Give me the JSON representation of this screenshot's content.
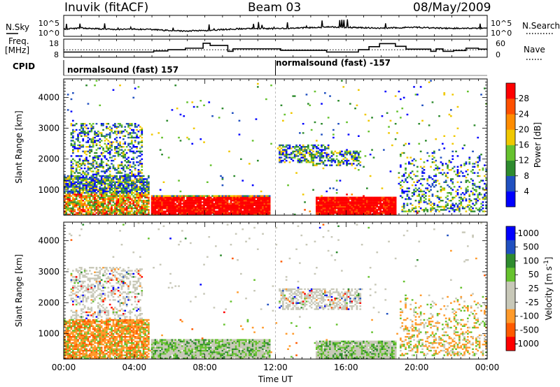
{
  "header": {
    "station": "Inuvik (fitACF)",
    "beam": "Beam 03",
    "date": "08/May/2009"
  },
  "left_labels": {
    "nsky": "N.Sky",
    "freq_line1": "Freq.",
    "freq_line2": "[MHz]",
    "cpid": "CPID"
  },
  "right_labels": {
    "nsearch": "N.Search",
    "nave": "Nave"
  },
  "cpid_segments": [
    {
      "label": "normalsound (fast) 157",
      "start_hour": 0
    },
    {
      "label": "normalsound (fast) -157",
      "start_hour": 12
    }
  ],
  "colors": {
    "power": [
      "#0000ff",
      "#2050c0",
      "#2e8b2e",
      "#66c22e",
      "#f0c800",
      "#ff8c00",
      "#ff5000",
      "#ff0000"
    ],
    "velocity": [
      "#ff0000",
      "#ff5a00",
      "#ff9a2a",
      "#c8c8b8",
      "#c8c8b8",
      "#66c22e",
      "#2e8b2e",
      "#2050c0",
      "#0000ff"
    ]
  },
  "chart_data": [
    {
      "type": "line",
      "panel": "noise",
      "x_unit": "hours UT",
      "left_axis": {
        "label": "N.Sky",
        "ticks": [
          "10^5",
          "10^0"
        ]
      },
      "right_axis": {
        "label": "N.Search",
        "ticks": [
          "10^5",
          "10^0"
        ]
      },
      "series": [
        {
          "name": "N.Sky",
          "x": [
            0,
            1,
            2,
            3,
            4,
            5,
            6,
            7,
            8,
            9,
            10,
            11,
            12,
            13,
            14,
            15,
            16,
            17,
            18,
            19,
            20,
            21,
            22,
            23,
            24
          ],
          "y": [
            1.6,
            1.9,
            1.7,
            1.5,
            1.6,
            1.5,
            1.2,
            1.1,
            1.2,
            1.5,
            1.7,
            1.8,
            1.7,
            1.9,
            2.0,
            2.2,
            2.1,
            2.0,
            1.9,
            2.0,
            2.1,
            1.9,
            1.8,
            1.9,
            1.8
          ]
        }
      ]
    },
    {
      "type": "line",
      "panel": "frequency",
      "x_unit": "hours UT",
      "left_axis": {
        "label": "Freq. [MHz]",
        "ticks": [
          8,
          18
        ],
        "range": [
          8,
          18
        ]
      },
      "right_axis": {
        "label": "Nave",
        "ticks": [
          0,
          60
        ],
        "range": [
          0,
          60
        ]
      },
      "series": [
        {
          "name": "Freq.",
          "x": [
            0,
            3.9,
            5.1,
            5.9,
            6.9,
            7.9,
            8.3,
            9.3,
            9.6,
            12.3,
            14.9,
            16.7,
            17.3,
            17.9,
            18.8,
            19.4,
            20.8,
            21.1,
            21.5,
            22.1,
            22.8,
            23.5,
            24
          ],
          "y": [
            10.5,
            10.5,
            11.2,
            12,
            13,
            16.2,
            14.8,
            11,
            12.6,
            11.6,
            10.5,
            12,
            14,
            16,
            14.2,
            12.4,
            11,
            12.5,
            11,
            11.5,
            13,
            12.4,
            12.4
          ]
        },
        {
          "name": "Nave",
          "x": [
            0,
            24
          ],
          "y": [
            24,
            24
          ]
        }
      ]
    },
    {
      "type": "heatmap",
      "panel": "power",
      "title": "",
      "xlabel": "",
      "ylabel": "Slant Range [km]",
      "x_range_hours": [
        0,
        24
      ],
      "x_ticks": [
        "00:00",
        "04:00",
        "08:00",
        "12:00",
        "16:00",
        "20:00",
        "00:00"
      ],
      "y_range_km": [
        180,
        4600
      ],
      "y_ticks": [
        1000,
        2000,
        3000,
        4000
      ],
      "colorbar": {
        "label": "Power [dB]",
        "ticks": [
          4,
          8,
          12,
          16,
          20,
          24,
          28
        ],
        "range": [
          0,
          32
        ]
      },
      "features": [
        {
          "x_start": 0.0,
          "x_end": 4.8,
          "range_min": 200,
          "range_max": 1500,
          "level": "mixed, mostly 8-28 dB"
        },
        {
          "x_start": 0.3,
          "x_end": 4.4,
          "range_min": 1500,
          "range_max": 3200,
          "level": "patchy 4-20 dB"
        },
        {
          "x_start": 4.9,
          "x_end": 11.7,
          "range_min": 200,
          "range_max": 850,
          "level": "strong, ~28 dB"
        },
        {
          "x_start": 14.2,
          "x_end": 18.8,
          "range_min": 200,
          "range_max": 800,
          "level": "strong, ~28 dB"
        },
        {
          "x_start": 12.1,
          "x_end": 15.0,
          "range_min": 1900,
          "range_max": 2500,
          "level": "12-20 dB"
        },
        {
          "x_start": 14.0,
          "x_end": 16.8,
          "range_min": 1800,
          "range_max": 2300,
          "level": "12-20 dB"
        },
        {
          "x_start": 19.0,
          "x_end": 24.0,
          "range_min": 300,
          "range_max": 2300,
          "level": "4-16 dB"
        }
      ]
    },
    {
      "type": "heatmap",
      "panel": "velocity",
      "title": "",
      "xlabel": "Time UT",
      "ylabel": "Slant Range [km]",
      "x_range_hours": [
        0,
        24
      ],
      "x_ticks": [
        "00:00",
        "04:00",
        "08:00",
        "12:00",
        "16:00",
        "20:00",
        "00:00"
      ],
      "y_range_km": [
        180,
        4600
      ],
      "y_ticks": [
        1000,
        2000,
        3000,
        4000
      ],
      "colorbar": {
        "label": "Velocity [m s^-1]",
        "ticks": [
          1000,
          500,
          100,
          50,
          25,
          -25,
          -100,
          -500,
          -1000
        ]
      },
      "features": [
        {
          "x_start": 0.0,
          "x_end": 4.8,
          "range_min": 200,
          "range_max": 1500,
          "level": "-100 to -500 m/s with positive patches"
        },
        {
          "x_start": 4.9,
          "x_end": 11.7,
          "range_min": 200,
          "range_max": 850,
          "level": "near 0 / +50 to +100 m/s"
        },
        {
          "x_start": 14.2,
          "x_end": 18.8,
          "range_min": 200,
          "range_max": 800,
          "level": "near 0 / +50 m/s"
        },
        {
          "x_start": 0.3,
          "x_end": 4.4,
          "range_min": 1500,
          "range_max": 3200,
          "level": "near 0 (grey)"
        },
        {
          "x_start": 12.1,
          "x_end": 16.8,
          "range_min": 1800,
          "range_max": 2500,
          "level": "near 0 (grey)"
        },
        {
          "x_start": 19.0,
          "x_end": 24.0,
          "range_min": 300,
          "range_max": 2300,
          "level": "-100 to -500 m/s"
        }
      ]
    }
  ],
  "axis_titles": {
    "slant_range": "Slant Range [km]",
    "time": "Time UT",
    "power": "Power [dB]",
    "velocity": "Velocity [m s",
    "velocity_exp": "-1",
    "velocity_close": "]"
  }
}
